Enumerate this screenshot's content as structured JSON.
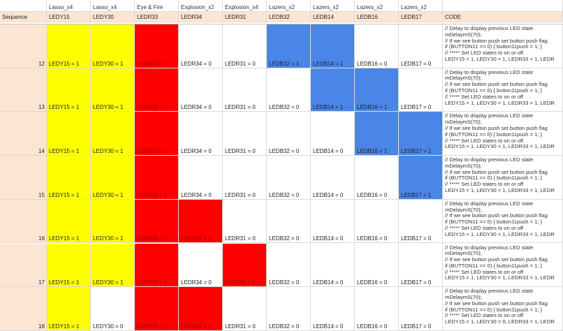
{
  "header_row1": [
    "",
    "Lasso_x4",
    "Lasso_x4",
    "Eye & Fire",
    "Explosion_x2",
    "Explosion_x4",
    "Lazers_x2",
    "Lazers_x2",
    "Lazers_x2",
    "Lazers_x2",
    ""
  ],
  "header_row2": [
    "Sequence",
    "LEDY15",
    "LEDY30",
    "LEDR33",
    "LEDR34",
    "LEDR31",
    "LEDB32",
    "LEDB14",
    "LEDB16",
    "LEDB17",
    "CODE"
  ],
  "colors": {
    "yellow": "#ffff00",
    "red": "#ff0000",
    "blue": "#4a86e8",
    "peach": "#fce5d2",
    "white": "#ffffff"
  },
  "rows": [
    {
      "seq": "12",
      "cells": [
        "LEDY15 = 1",
        "LEDY30 = 1",
        "LEDR33 = 1",
        "LEDR34 = 0",
        "LEDR31 = 0",
        "LEDB32 = 1",
        "LEDB14 = 1",
        "LEDB16 = 0",
        "LEDB17 = 0"
      ],
      "fill": [
        "y",
        "y",
        "r",
        "w",
        "w",
        "b",
        "b",
        "w",
        "w"
      ],
      "code": "// Delay to display previous LED state\nmDelaymS(70);\n// If we see button push set button push flag\nif (BUTTON11 == 0) { button11push = 1; }\n// ***** Set LED states to on or off\nLEDY15 = 1, LEDY30 = 1, LEDR33 = 1, LEDR"
    },
    {
      "seq": "13",
      "cells": [
        "LEDY15 = 1",
        "LEDY30 = 1",
        "LEDR33 = 1",
        "LEDR34 = 0",
        "LEDR31 = 0",
        "LEDB32 = 0",
        "LEDB14 = 1",
        "LEDB16 = 1",
        "LEDB17 = 0"
      ],
      "fill": [
        "y",
        "y",
        "r",
        "w",
        "w",
        "w",
        "b",
        "b",
        "w"
      ],
      "code": "// Delay to display previous LED state\nmDelaymS(70);\n// If we see button push set button push flag\nif (BUTTON11 == 0) { button11push = 1; }\n// ***** Set LED states to on or off\nLEDY15 = 1, LEDY30 = 1, LEDR33 = 1, LEDR"
    },
    {
      "seq": "14",
      "cells": [
        "LEDY15 = 1",
        "LEDY30 = 1",
        "LEDR33 = 1",
        "LEDR34 = 0",
        "LEDR31 = 0",
        "LEDB32 = 0",
        "LEDB14 = 0",
        "LEDB16 = 1",
        "LEDB17 = 1"
      ],
      "fill": [
        "y",
        "y",
        "r",
        "w",
        "w",
        "w",
        "w",
        "b",
        "b"
      ],
      "code": "// Delay to display previous LED state\nmDelaymS(70);\n// If we see button push set button push flag\nif (BUTTON11 == 0) { button11push = 1; }\n// ***** Set LED states to on or off\nLEDY15 = 1, LEDY30 = 1, LEDR33 = 1, LEDR"
    },
    {
      "seq": "15",
      "cells": [
        "LEDY15 = 1",
        "LEDY30 = 1",
        "LEDR33 = 1",
        "LEDR34 = 0",
        "LEDR31 = 0",
        "LEDB32 = 0",
        "LEDB14 = 0",
        "LEDB16 = 0",
        "LEDB17 = 1"
      ],
      "fill": [
        "y",
        "y",
        "r",
        "w",
        "w",
        "w",
        "w",
        "w",
        "b"
      ],
      "code": "// Delay to display previous LED state\nmDelaymS(70);\n// If we see button push set button push flag\nif (BUTTON11 == 0) { button11push = 1; }\n// ***** Set LED states to on or off\nLEDY15 = 1, LEDY30 = 1, LEDR33 = 1, LEDR"
    },
    {
      "seq": "16",
      "cells": [
        "LEDY15 = 1",
        "LEDY30 = 1",
        "LEDR33 = 1",
        "LEDR34 = 1",
        "LEDR31 = 0",
        "LEDB32 = 0",
        "LEDB14 = 0",
        "LEDB16 = 0",
        "LEDB17 = 0"
      ],
      "fill": [
        "y",
        "y",
        "r",
        "r",
        "w",
        "w",
        "w",
        "w",
        "w"
      ],
      "code": "// Delay to display previous LED state\nmDelaymS(70);\n// If we see button push set button push flag\nif (BUTTON11 == 0) { button11push = 1; }\n// ***** Set LED states to on or off\nLEDY15 = 1, LEDY30 = 1, LEDR33 = 1, LEDR"
    },
    {
      "seq": "17",
      "cells": [
        "LEDY15 = 1",
        "LEDY30 = 1",
        "LEDR33 = 1",
        "LEDR34 = 0",
        "LEDR31 = 1",
        "LEDB32 = 0",
        "LEDB14 = 0",
        "LEDB16 = 0",
        "LEDB17 = 0"
      ],
      "fill": [
        "y",
        "y",
        "r",
        "w",
        "r",
        "w",
        "w",
        "w",
        "w"
      ],
      "code": "// Delay to display previous LED state\nmDelaymS(70);\n// If we see button push set button push flag\nif (BUTTON11 == 0) { button11push = 1; }\n// ***** Set LED states to on or off\nLEDY15 = 1, LEDY30 = 1, LEDR33 = 1, LEDR"
    },
    {
      "seq": "18",
      "cells": [
        "LEDY15 = 1",
        "LEDY30 = 0",
        "LEDR33 = 1",
        "LEDR34 = 1",
        "LEDR31 = 0",
        "LEDB32 = 0",
        "LEDB14 = 0",
        "LEDB16 = 0",
        "LEDB17 = 0"
      ],
      "fill": [
        "y",
        "w",
        "r",
        "r",
        "w",
        "w",
        "w",
        "w",
        "w"
      ],
      "code": "// Delay to display previous LED state\nmDelaymS(70);\n// If we see button push set button push flag\nif (BUTTON11 == 0) { button11push = 1; }\n// ***** Set LED states to on or off\nLEDY15 = 1, LEDY30 = 0, LEDR33 = 1, LEDR"
    }
  ]
}
